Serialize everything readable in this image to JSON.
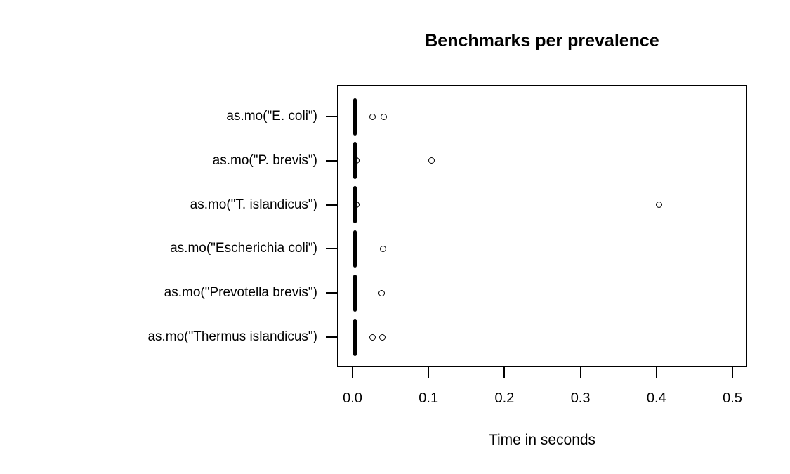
{
  "chart_data": {
    "type": "scatter",
    "variant": "horizontal-stripchart",
    "title": "Benchmarks per prevalence",
    "xlabel": "Time in seconds",
    "ylabel": "",
    "xlim": [
      0.0,
      0.5
    ],
    "xticks": [
      "0.0",
      "0.1",
      "0.2",
      "0.3",
      "0.4",
      "0.5"
    ],
    "grid": false,
    "legend": null,
    "point_color": "#000000",
    "background_color": "#ffffff",
    "rows": [
      {
        "label": "as.mo(\"E. coli\")",
        "cluster": {
          "time_min": 0.001,
          "time_max": 0.005
        },
        "points": [
          0.026,
          0.041
        ]
      },
      {
        "label": "as.mo(\"P. brevis\")",
        "cluster": {
          "time_min": 0.001,
          "time_max": 0.005
        },
        "points": [
          0.005,
          0.104
        ]
      },
      {
        "label": "as.mo(\"T. islandicus\")",
        "cluster": {
          "time_min": 0.001,
          "time_max": 0.005
        },
        "points": [
          0.005,
          0.403
        ]
      },
      {
        "label": "as.mo(\"Escherichia coli\")",
        "cluster": {
          "time_min": 0.001,
          "time_max": 0.005
        },
        "points": [
          0.04
        ]
      },
      {
        "label": "as.mo(\"Prevotella brevis\")",
        "cluster": {
          "time_min": 0.001,
          "time_max": 0.005
        },
        "points": [
          0.038
        ]
      },
      {
        "label": "as.mo(\"Thermus islandicus\")",
        "cluster": {
          "time_min": 0.001,
          "time_max": 0.005
        },
        "points": [
          0.026,
          0.039
        ]
      }
    ]
  }
}
